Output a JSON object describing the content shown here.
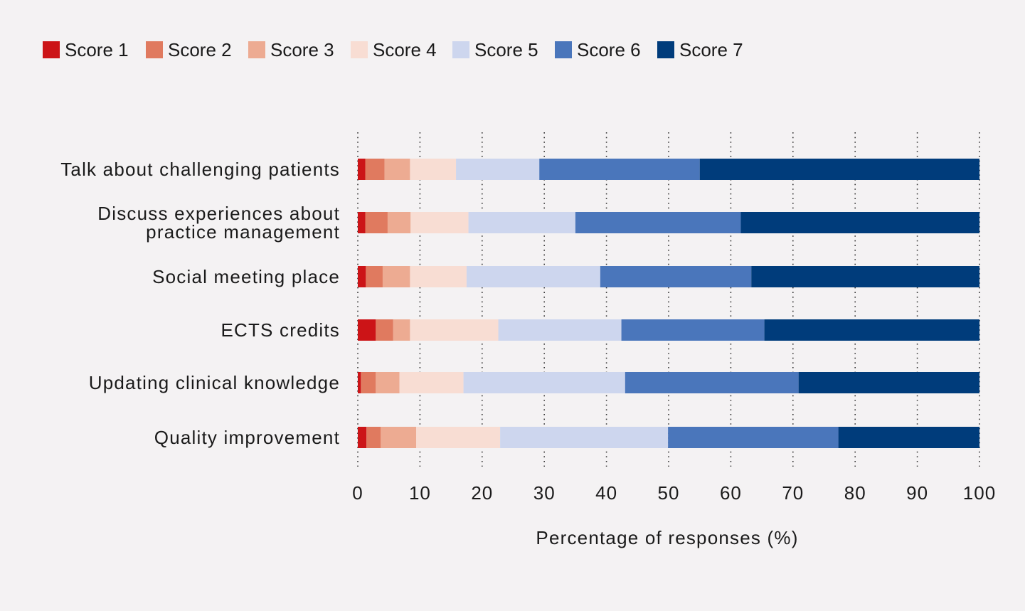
{
  "chart_data": {
    "type": "bar",
    "orientation": "horizontal",
    "stacked": true,
    "title": "",
    "xlabel": "Percentage of responses (%)",
    "ylabel": "",
    "xlim": [
      0,
      100
    ],
    "xticks": [
      "0",
      "10",
      "20",
      "30",
      "40",
      "50",
      "60",
      "70",
      "80",
      "90",
      "100"
    ],
    "grid": "vertical-dotted",
    "legend_position": "top-left",
    "categories": [
      [
        "Talk about challenging patients"
      ],
      [
        "Discuss experiences about",
        "practice management"
      ],
      [
        "Social meeting place"
      ],
      [
        "ECTS credits"
      ],
      [
        "Updating clinical knowledge"
      ],
      [
        "Quality improvement"
      ]
    ],
    "series": [
      {
        "name": "Score 1",
        "color": "#cc1417",
        "values": [
          1.2,
          1.2,
          1.3,
          2.9,
          0.5,
          1.4
        ]
      },
      {
        "name": "Score 2",
        "color": "#e07a5f",
        "values": [
          3.1,
          3.6,
          2.7,
          2.8,
          2.4,
          2.3
        ]
      },
      {
        "name": "Score 3",
        "color": "#edab92",
        "values": [
          4.1,
          3.7,
          4.4,
          2.7,
          3.8,
          5.7
        ]
      },
      {
        "name": "Score 4",
        "color": "#f8ddd3",
        "values": [
          7.4,
          9.3,
          9.1,
          14.2,
          10.3,
          13.5
        ]
      },
      {
        "name": "Score 5",
        "color": "#cdd6ee",
        "values": [
          13.4,
          17.2,
          21.5,
          19.8,
          26.0,
          27.0
        ]
      },
      {
        "name": "Score 6",
        "color": "#4a76bb",
        "values": [
          25.8,
          26.6,
          24.3,
          23.0,
          27.9,
          27.4
        ]
      },
      {
        "name": "Score 7",
        "color": "#003c7b",
        "values": [
          45.0,
          38.4,
          36.7,
          34.6,
          29.1,
          22.7
        ]
      }
    ]
  }
}
